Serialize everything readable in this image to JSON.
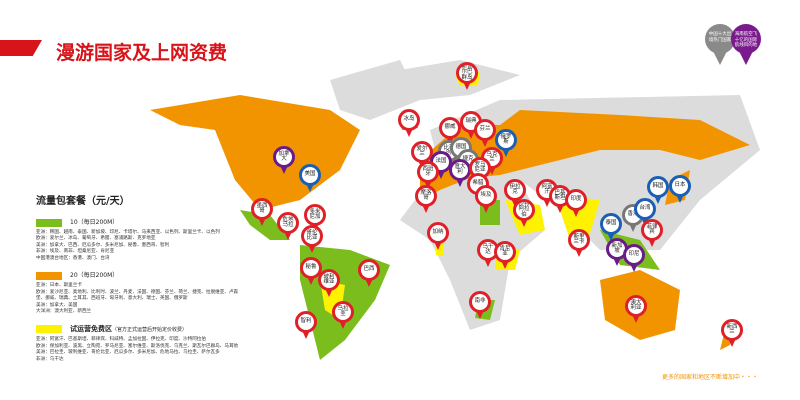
{
  "title": "漫游国家及上网资费",
  "legend": {
    "heading": "流量包套餐（元/天）",
    "tiers": [
      {
        "color": "#7cbd1e",
        "label": "10（每日200M）",
        "text": "亚洲：韩国、越南、泰国、新加坡、印尼、卡塔尔、马来西亚、以色列、斯里兰卡、以色列\n欧洲：爱尔兰、冰岛、葡萄牙、希腊、塞浦路斯、克罗地亚\n美洲：加拿大、巴西、厄瓜多尔、多米尼加、秘鲁、墨西哥、智利\n非洲：埃及、南非、坦桑尼亚、肯尼亚\n中国港澳台地区：香港、澳门、台湾"
      },
      {
        "color": "#f29400",
        "label": "20（每日200M）",
        "text": "亚洲：日本、斯里兰卡\n欧洲：爱沙尼亚、奥地利、比利时、波兰、丹麦、法国、德国、芬兰、荷兰、捷克、拉脱维亚、卢森堡、挪威、瑞典、土耳其、西班牙、匈牙利、意大利、瑞士、英国、俄罗斯\n美洲：加拿大、美国\n大洋洲：澳大利亚、新西兰"
      },
      {
        "color": "#fff200",
        "label": "试运营免费区",
        "note": "（官方正式运营后开始定价收费）",
        "text": "亚洲：阿富汗、巴基斯坦、菲律宾、科威特、孟加拉国、伊拉克、印度、沙特阿拉伯\n欧洲：保加利亚、波黑、立陶宛、罗马尼亚、塞尔维亚、斯洛伐克、乌克兰、斯瓦尔巴群岛、马耳他\n美洲：巴拉圭、玻利维亚、哥伦比亚、厄瓜多尔、多米尼加、危地马拉、乌拉圭、萨尔瓦多\n非洲：乌干达"
      }
    ]
  },
  "badges": [
    {
      "text": "中国十大出境热门国家",
      "color": "#8a8a8a"
    },
    {
      "text": "海南航空飞十亿的国际航线目的地",
      "color": "#7a1a8c"
    }
  ],
  "pins": [
    {
      "label": "斯瓦尔巴群岛",
      "type": "red"
    },
    {
      "label": "冰岛",
      "type": "red"
    },
    {
      "label": "挪威",
      "type": "red"
    },
    {
      "label": "瑞典",
      "type": "red"
    },
    {
      "label": "芬兰",
      "type": "red"
    },
    {
      "label": "俄罗斯",
      "type": "blue"
    },
    {
      "label": "爱尔兰",
      "type": "red"
    },
    {
      "label": "比利时",
      "type": "gray"
    },
    {
      "label": "德国",
      "type": "gray"
    },
    {
      "label": "捷克",
      "type": "gray"
    },
    {
      "label": "法国",
      "type": "purple"
    },
    {
      "label": "乌克兰",
      "type": "red"
    },
    {
      "label": "西班牙",
      "type": "red"
    },
    {
      "label": "意大利",
      "type": "purple"
    },
    {
      "label": "罗马尼亚",
      "type": "red"
    },
    {
      "label": "希腊",
      "type": "red"
    },
    {
      "label": "摩洛哥",
      "type": "red"
    },
    {
      "label": "埃及",
      "type": "red"
    },
    {
      "label": "伊拉克",
      "type": "red"
    },
    {
      "label": "沙特阿拉伯",
      "type": "red"
    },
    {
      "label": "阿富汗",
      "type": "red"
    },
    {
      "label": "巴基斯坦",
      "type": "red"
    },
    {
      "label": "印度",
      "type": "red"
    },
    {
      "label": "斯里兰卡",
      "type": "red"
    },
    {
      "label": "加纳",
      "type": "red"
    },
    {
      "label": "乌干达",
      "type": "red"
    },
    {
      "label": "肯尼亚",
      "type": "red"
    },
    {
      "label": "南非",
      "type": "red"
    },
    {
      "label": "韩国",
      "type": "blue"
    },
    {
      "label": "日本",
      "type": "blue"
    },
    {
      "label": "香港",
      "type": "gray"
    },
    {
      "label": "台湾",
      "type": "blue"
    },
    {
      "label": "泰国",
      "type": "blue"
    },
    {
      "label": "菲律宾",
      "type": "red"
    },
    {
      "label": "新加坡",
      "type": "purple"
    },
    {
      "label": "印尼",
      "type": "purple"
    },
    {
      "label": "澳大利亚",
      "type": "red"
    },
    {
      "label": "新西兰",
      "type": "red"
    },
    {
      "label": "加拿大",
      "type": "purple"
    },
    {
      "label": "美国",
      "type": "blue"
    },
    {
      "label": "墨西哥",
      "type": "red"
    },
    {
      "label": "多米尼加",
      "type": "red"
    },
    {
      "label": "危地马拉",
      "type": "red"
    },
    {
      "label": "哥伦比亚",
      "type": "red"
    },
    {
      "label": "秘鲁",
      "type": "red"
    },
    {
      "label": "巴西",
      "type": "red"
    },
    {
      "label": "玻利维亚",
      "type": "red"
    },
    {
      "label": "乌拉圭",
      "type": "red"
    },
    {
      "label": "智利",
      "type": "red"
    }
  ],
  "footer": "更多的国家和地区不断增加中・・・"
}
